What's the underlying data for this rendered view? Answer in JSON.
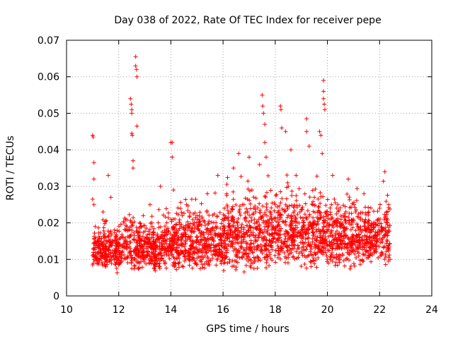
{
  "chart_data": {
    "type": "scatter",
    "title": "Day 038 of 2022, Rate Of TEC Index for receiver pepe",
    "xlabel": "GPS time / hours",
    "ylabel": "ROTI / TECUs",
    "xlim": [
      10,
      24
    ],
    "ylim": [
      0,
      0.07
    ],
    "xticks": [
      10,
      12,
      14,
      16,
      18,
      20,
      22,
      24
    ],
    "yticks": [
      0,
      0.01,
      0.02,
      0.03,
      0.04,
      0.05,
      0.06,
      0.07
    ],
    "ytick_labels": [
      "0",
      "0.01",
      "0.02",
      "0.03",
      "0.04",
      "0.05",
      "0.06",
      "0.07"
    ],
    "grid": true,
    "marker": "plus",
    "color": "#ff0000",
    "series": [
      {
        "points": [
          [
            11.0,
            0.0085
          ],
          [
            11.0,
            0.044
          ],
          [
            11.02,
            0.0435
          ],
          [
            11.05,
            0.0365
          ],
          [
            11.05,
            0.032
          ],
          [
            11.0,
            0.0265
          ],
          [
            11.05,
            0.025
          ],
          [
            11.1,
            0.019
          ],
          [
            11.2,
            0.015
          ],
          [
            11.3,
            0.012
          ],
          [
            11.4,
            0.023
          ],
          [
            11.5,
            0.01
          ],
          [
            11.6,
            0.033
          ],
          [
            11.7,
            0.027
          ],
          [
            11.8,
            0.011
          ],
          [
            12.0,
            0.013
          ],
          [
            12.2,
            0.02
          ],
          [
            12.4,
            0.016
          ],
          [
            12.45,
            0.054
          ],
          [
            12.48,
            0.0525
          ],
          [
            12.5,
            0.051
          ],
          [
            12.5,
            0.05
          ],
          [
            12.5,
            0.0445
          ],
          [
            12.52,
            0.044
          ],
          [
            12.55,
            0.037
          ],
          [
            12.55,
            0.035
          ],
          [
            12.65,
            0.0655
          ],
          [
            12.65,
            0.063
          ],
          [
            12.68,
            0.062
          ],
          [
            12.7,
            0.06
          ],
          [
            12.7,
            0.0465
          ],
          [
            12.8,
            0.02
          ],
          [
            13.0,
            0.015
          ],
          [
            13.2,
            0.025
          ],
          [
            13.4,
            0.011
          ],
          [
            13.6,
            0.03
          ],
          [
            13.8,
            0.015
          ],
          [
            14.0,
            0.042
          ],
          [
            14.05,
            0.042
          ],
          [
            14.05,
            0.038
          ],
          [
            14.1,
            0.029
          ],
          [
            14.2,
            0.017
          ],
          [
            14.4,
            0.012
          ],
          [
            14.6,
            0.025
          ],
          [
            14.8,
            0.014
          ],
          [
            15.0,
            0.022
          ],
          [
            15.2,
            0.013
          ],
          [
            15.4,
            0.028
          ],
          [
            15.6,
            0.016
          ],
          [
            15.8,
            0.033
          ],
          [
            16.0,
            0.019
          ],
          [
            16.2,
            0.014
          ],
          [
            16.4,
            0.035
          ],
          [
            16.6,
            0.039
          ],
          [
            16.8,
            0.025
          ],
          [
            17.0,
            0.038
          ],
          [
            17.2,
            0.021
          ],
          [
            17.4,
            0.036
          ],
          [
            17.5,
            0.055
          ],
          [
            17.52,
            0.052
          ],
          [
            17.55,
            0.05
          ],
          [
            17.6,
            0.047
          ],
          [
            17.6,
            0.042
          ],
          [
            17.65,
            0.038
          ],
          [
            17.8,
            0.015
          ],
          [
            18.0,
            0.025
          ],
          [
            18.2,
            0.052
          ],
          [
            18.22,
            0.051
          ],
          [
            18.25,
            0.046
          ],
          [
            18.4,
            0.045
          ],
          [
            18.5,
            0.03
          ],
          [
            18.6,
            0.04
          ],
          [
            18.8,
            0.033
          ],
          [
            19.0,
            0.018
          ],
          [
            19.2,
            0.0485
          ],
          [
            19.2,
            0.045
          ],
          [
            19.3,
            0.041
          ],
          [
            19.5,
            0.027
          ],
          [
            19.7,
            0.045
          ],
          [
            19.75,
            0.044
          ],
          [
            19.8,
            0.039
          ],
          [
            19.85,
            0.059
          ],
          [
            19.85,
            0.056
          ],
          [
            19.85,
            0.054
          ],
          [
            19.88,
            0.0525
          ],
          [
            19.9,
            0.051
          ],
          [
            20.0,
            0.02
          ],
          [
            20.2,
            0.033
          ],
          [
            20.4,
            0.025
          ],
          [
            20.6,
            0.015
          ],
          [
            20.8,
            0.032
          ],
          [
            21.0,
            0.021
          ],
          [
            21.2,
            0.013
          ],
          [
            21.4,
            0.028
          ],
          [
            21.6,
            0.018
          ],
          [
            21.8,
            0.012
          ],
          [
            22.0,
            0.024
          ],
          [
            22.2,
            0.034
          ],
          [
            22.3,
            0.015
          ],
          [
            22.35,
            0.025
          ],
          [
            22.4,
            0.01
          ]
        ],
        "cloud_note_excluded": true
      }
    ],
    "dense_band": {
      "segments": [
        {
          "x": [
            11.0,
            11.9
          ],
          "y_low": 0.007,
          "y_high": 0.022
        },
        {
          "x": [
            11.9,
            13.8
          ],
          "y_low": 0.006,
          "y_high": 0.024
        },
        {
          "x": [
            13.8,
            16.0
          ],
          "y_low": 0.006,
          "y_high": 0.028
        },
        {
          "x": [
            16.0,
            17.8
          ],
          "y_low": 0.006,
          "y_high": 0.032
        },
        {
          "x": [
            17.8,
            19.8
          ],
          "y_low": 0.007,
          "y_high": 0.034
        },
        {
          "x": [
            19.8,
            22.4
          ],
          "y_low": 0.007,
          "y_high": 0.03
        }
      ],
      "count": 2600
    }
  }
}
